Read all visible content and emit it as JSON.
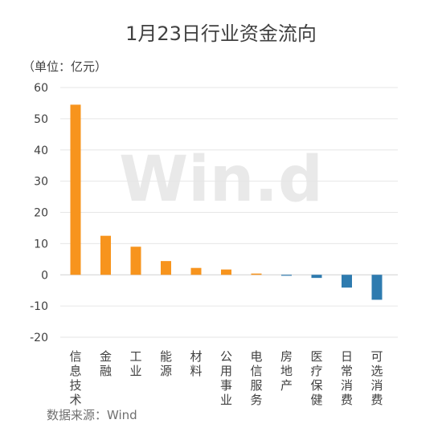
{
  "chart_data": {
    "type": "bar",
    "title": "1月23日行业资金流向",
    "unit_label": "（单位：亿元）",
    "source": "数据来源：Wind",
    "watermark": "Win.d",
    "categories": [
      "信息技术",
      "金融",
      "工业",
      "能源",
      "材料",
      "公用事业",
      "电信服务",
      "房地产",
      "医疗保健",
      "日常消费",
      "可选消费"
    ],
    "values": [
      54.5,
      12.5,
      9.0,
      4.4,
      2.2,
      1.7,
      0.4,
      -0.3,
      -1.0,
      -4.1,
      -8.0
    ],
    "yticks": [
      60,
      50,
      40,
      30,
      20,
      10,
      0,
      -10,
      -20
    ],
    "ylim": [
      -20,
      60
    ],
    "grid": true,
    "colors": {
      "positive": "#F7941D",
      "negative": "#2E7BAF",
      "grid": "#E6E6E6",
      "text": "#404040",
      "watermark": "#E9E9E9"
    }
  }
}
